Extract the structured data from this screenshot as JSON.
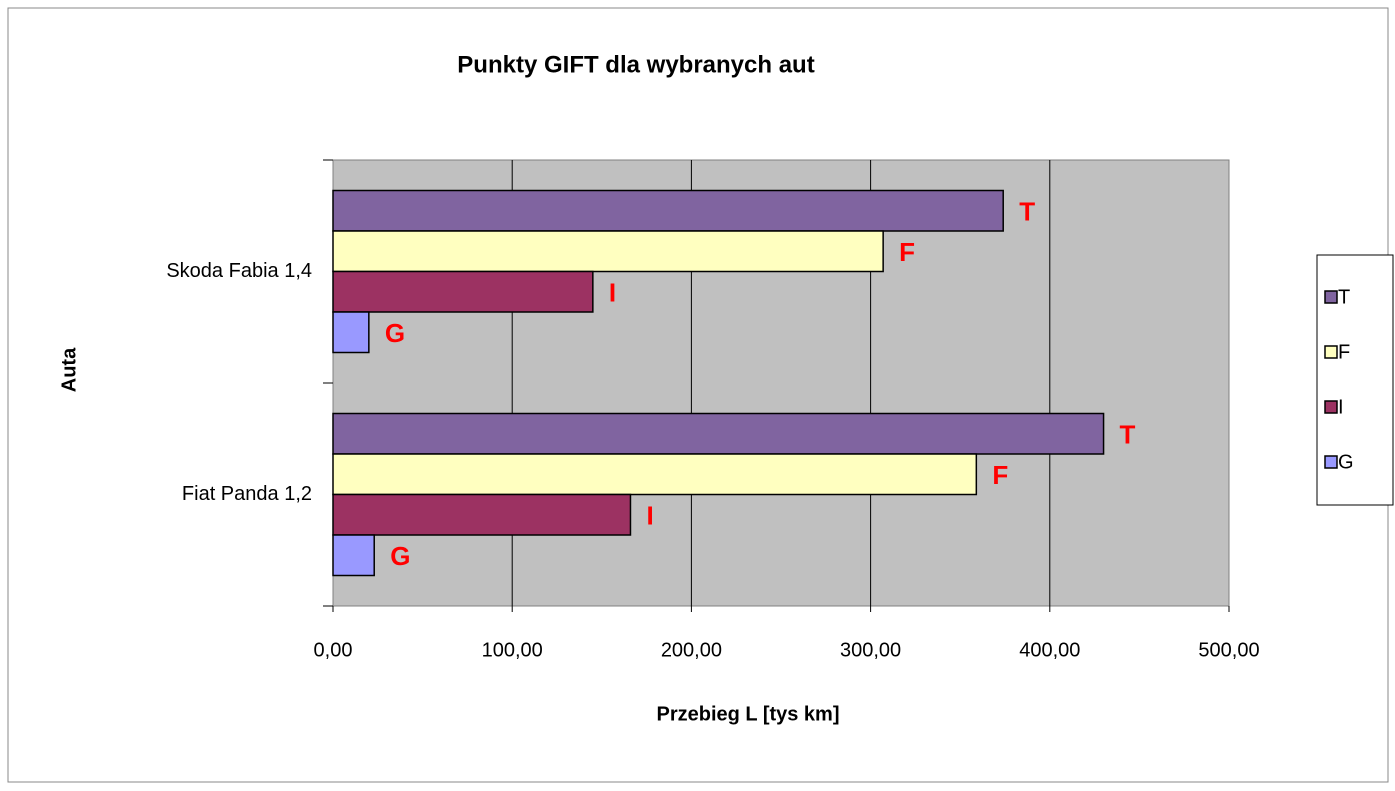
{
  "chart_data": {
    "type": "barh",
    "title": "Punkty GIFT dla wybranych aut",
    "xlabel": "Przebieg L [tys km]",
    "ylabel": "Auta",
    "categories": [
      "Skoda Fabia 1,4",
      "Fiat Panda 1,2"
    ],
    "series": [
      {
        "name": "T",
        "color": "#8064a0",
        "values": [
          374,
          430
        ]
      },
      {
        "name": "F",
        "color": "#ffffc0",
        "values": [
          307,
          359
        ]
      },
      {
        "name": "I",
        "color": "#9c3262",
        "values": [
          145,
          166
        ]
      },
      {
        "name": "G",
        "color": "#9999ff",
        "values": [
          20,
          23
        ]
      }
    ],
    "xlim": [
      0,
      500
    ],
    "xticks": [
      {
        "value": 0,
        "label": "0,00"
      },
      {
        "value": 100,
        "label": "100,00"
      },
      {
        "value": 200,
        "label": "200,00"
      },
      {
        "value": 300,
        "label": "300,00"
      },
      {
        "value": 400,
        "label": "400,00"
      },
      {
        "value": 500,
        "label": "500,00"
      }
    ],
    "grid": true,
    "legend": "right"
  }
}
